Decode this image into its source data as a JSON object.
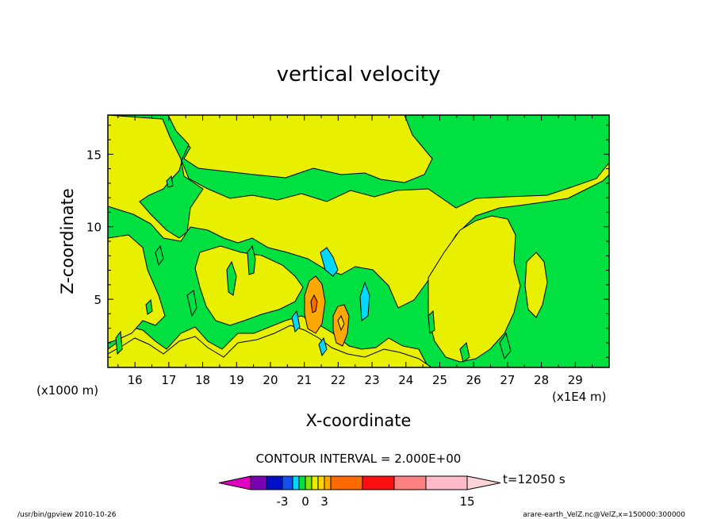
{
  "chart_data": {
    "type": "heatmap",
    "title": "vertical velocity",
    "xlabel": "X-coordinate",
    "ylabel": "Z-coordinate",
    "x_unit_label": "(x1E4 m)",
    "y_unit_label": "(x1000 m)",
    "xlim": [
      15.2,
      30.0
    ],
    "ylim": [
      0.3,
      17.7
    ],
    "x_ticks": [
      16,
      17,
      18,
      19,
      20,
      21,
      22,
      23,
      24,
      25,
      26,
      27,
      28,
      29
    ],
    "y_ticks": [
      5,
      10,
      15
    ],
    "contour_interval_text": "CONTOUR INTERVAL = 2.000E+00",
    "time_text": "t=12050 s",
    "colorbar": {
      "colors": [
        "#e000c0",
        "#7a00b4",
        "#0010c8",
        "#1450f0",
        "#00d8ff",
        "#00e040",
        "#7ae800",
        "#e8f000",
        "#ffd400",
        "#ffa800",
        "#ff6a00",
        "#ff1010",
        "#ff8080",
        "#ffbcc8",
        "#ffd4d8"
      ],
      "tick_labels": [
        {
          "value": -3,
          "label": "-3"
        },
        {
          "value": 0,
          "label": "0"
        },
        {
          "value": 3,
          "label": "3"
        },
        {
          "value": 15,
          "label": "15"
        }
      ]
    },
    "regions": [
      {
        "level": "green",
        "color": "#00e040"
      },
      {
        "level": "yellow",
        "color": "#e8f000"
      },
      {
        "level": "cyan",
        "color": "#00d8ff"
      },
      {
        "level": "orange",
        "color": "#ffa800"
      }
    ],
    "footer_left": "/usr/bin/gpview   2010-10-26",
    "footer_right": "arare-earth_VelZ.nc@VelZ,x=150000:300000"
  }
}
